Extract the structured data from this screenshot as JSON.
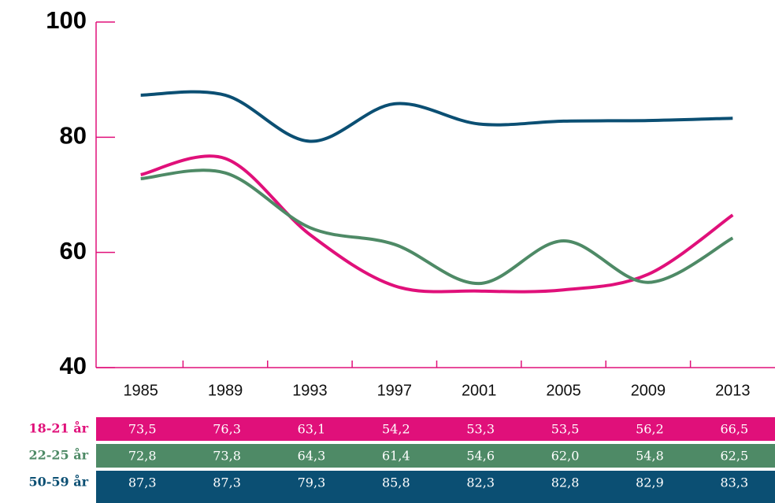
{
  "chart_data": {
    "type": "line",
    "categories": [
      "1985",
      "1989",
      "1993",
      "1997",
      "2001",
      "2005",
      "2009",
      "2013"
    ],
    "series": [
      {
        "name": "18-21 år",
        "color": "#e0107a",
        "values": [
          73.5,
          76.3,
          63.1,
          54.2,
          53.3,
          53.5,
          56.2,
          66.5
        ],
        "value_labels": [
          "73,5",
          "76,3",
          "63,1",
          "54,2",
          "53,3",
          "53,5",
          "56,2",
          "66,5"
        ]
      },
      {
        "name": "22-25 år",
        "color": "#4e8a66",
        "values": [
          72.8,
          73.8,
          64.3,
          61.4,
          54.6,
          62.0,
          54.8,
          62.5
        ],
        "value_labels": [
          "72,8",
          "73,8",
          "64,3",
          "61,4",
          "54,6",
          "62,0",
          "54,8",
          "62,5"
        ]
      },
      {
        "name": "50-59 år",
        "color": "#0b4f73",
        "values": [
          87.3,
          87.3,
          79.3,
          85.8,
          82.3,
          82.8,
          82.9,
          83.3
        ],
        "value_labels": [
          "87,3",
          "87,3",
          "79,3",
          "85,8",
          "82,3",
          "82,8",
          "82,9",
          "83,3"
        ]
      }
    ],
    "ylim": [
      40,
      100
    ],
    "yticks": [
      40,
      60,
      80,
      100
    ]
  }
}
